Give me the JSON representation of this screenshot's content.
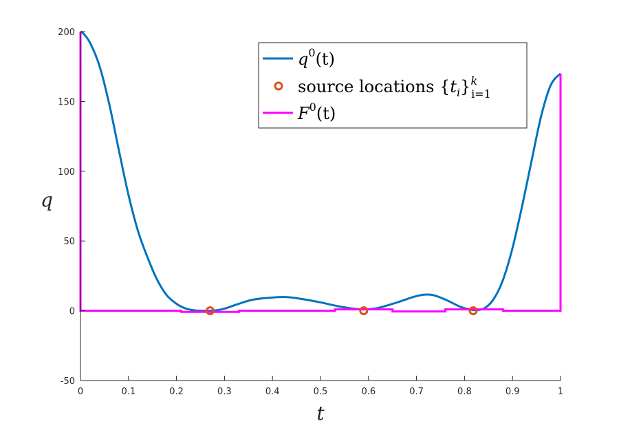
{
  "chart_data": {
    "type": "line",
    "xlabel": "t",
    "ylabel": "q",
    "xlim": [
      0,
      1
    ],
    "ylim": [
      -50,
      200
    ],
    "xticks": [
      "0",
      "0.1",
      "0.2",
      "0.3",
      "0.4",
      "0.5",
      "0.6",
      "0.7",
      "0.8",
      "0.9",
      "1"
    ],
    "yticks": [
      "-50",
      "0",
      "50",
      "100",
      "150",
      "200"
    ],
    "grid": false,
    "legend_placement": "top-right",
    "legend": {
      "q0": {
        "fn": "q",
        "sup": "0",
        "arg": "(t)"
      },
      "src": {
        "text": "source locations",
        "sub": "i=1",
        "sup": "k"
      },
      "F0": {
        "fn": "F",
        "sup": "0",
        "arg": "(t)"
      }
    },
    "series": [
      {
        "key": "q0",
        "type": "line",
        "color": "#0072BD",
        "x": [
          0,
          0.005,
          0.02,
          0.04,
          0.06,
          0.08,
          0.1,
          0.12,
          0.14,
          0.16,
          0.18,
          0.2,
          0.22,
          0.24,
          0.26,
          0.27,
          0.28,
          0.3,
          0.33,
          0.36,
          0.4,
          0.43,
          0.46,
          0.5,
          0.54,
          0.57,
          0.59,
          0.62,
          0.66,
          0.7,
          0.73,
          0.76,
          0.79,
          0.81,
          0.82,
          0.84,
          0.86,
          0.88,
          0.9,
          0.92,
          0.94,
          0.96,
          0.98,
          1.0
        ],
        "y": [
          200,
          199,
          192,
          175,
          148,
          115,
          83,
          57,
          38,
          22,
          11,
          5,
          1.5,
          0.2,
          0,
          0,
          0.2,
          1.5,
          5,
          8,
          9.5,
          9.8,
          8.5,
          6,
          3,
          1.5,
          1,
          2,
          6,
          10.5,
          11.5,
          8,
          3,
          1,
          0.5,
          1.5,
          8,
          22,
          45,
          75,
          108,
          140,
          162,
          170
        ]
      },
      {
        "key": "src",
        "type": "scatter",
        "color": "#D95319",
        "x": [
          0.27,
          0.59,
          0.818
        ],
        "y": [
          0,
          0,
          0
        ]
      },
      {
        "key": "F0",
        "type": "step",
        "color": "#FF00FF",
        "x": [
          0,
          0,
          0.21,
          0.21,
          0.33,
          0.33,
          0.53,
          0.53,
          0.65,
          0.65,
          0.76,
          0.76,
          0.88,
          0.88,
          1.0,
          1.0
        ],
        "y": [
          200,
          0,
          0,
          -0.8,
          -0.8,
          0,
          0,
          1,
          1,
          -0.5,
          -0.5,
          1,
          1,
          0,
          0,
          170
        ]
      }
    ]
  }
}
